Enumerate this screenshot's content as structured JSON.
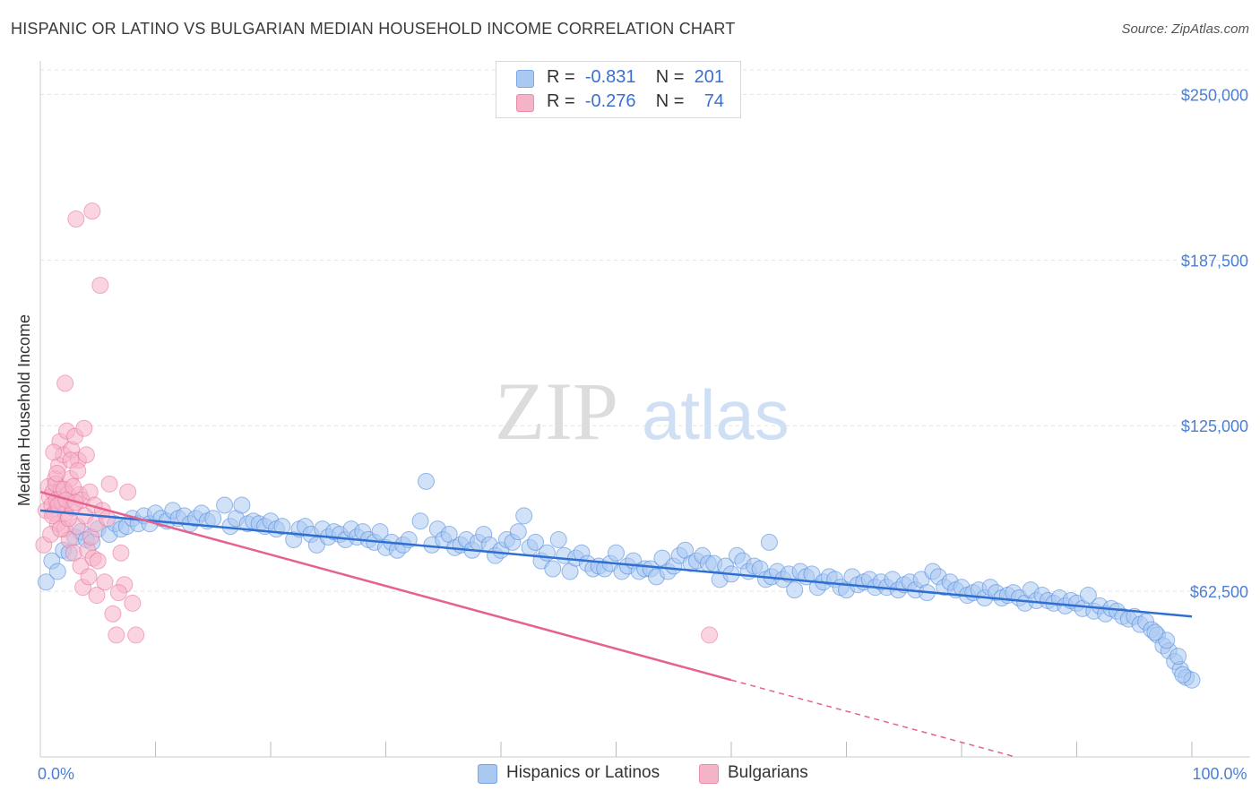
{
  "title": "HISPANIC OR LATINO VS BULGARIAN MEDIAN HOUSEHOLD INCOME CORRELATION CHART",
  "source": "Source: ZipAtlas.com",
  "watermark": {
    "zip": "ZIP",
    "atlas": "atlas"
  },
  "legend": [
    {
      "r_label": "R =",
      "r_value": "-0.831",
      "n_label": "N =",
      "n_value": "201",
      "color": "#a9c8f2"
    },
    {
      "r_label": "R =",
      "r_value": "-0.276",
      "n_label": "N =",
      "n_value": "74",
      "color": "#f5b3c8"
    }
  ],
  "chart_data": {
    "type": "scatter",
    "xlabel": "",
    "ylabel": "Median Household Income",
    "xlim": [
      0,
      100
    ],
    "ylim": [
      0,
      262000
    ],
    "y_ticks": [
      {
        "value": 62500,
        "label": "$62,500"
      },
      {
        "value": 125000,
        "label": "$125,000"
      },
      {
        "value": 187500,
        "label": "$187,500"
      },
      {
        "value": 250000,
        "label": "$250,000"
      }
    ],
    "x_ticks": [
      {
        "value": 0,
        "label": "0.0%"
      },
      {
        "value": 100,
        "label": "100.0%"
      }
    ],
    "grid": true,
    "series": [
      {
        "name": "Hispanics or Latinos",
        "color": "#4a86d9",
        "fill": "#a9c8f2",
        "trend": {
          "x0": 0,
          "y0": 93000,
          "x1": 100,
          "y1": 53000
        },
        "points": [
          [
            0.5,
            66000
          ],
          [
            1,
            74000
          ],
          [
            1.5,
            70000
          ],
          [
            2,
            78000
          ],
          [
            2.5,
            77000
          ],
          [
            3,
            83000
          ],
          [
            3.5,
            85000
          ],
          [
            4,
            82000
          ],
          [
            4.5,
            81000
          ],
          [
            5,
            86000
          ],
          [
            6,
            84000
          ],
          [
            6.5,
            88000
          ],
          [
            7,
            86000
          ],
          [
            7.5,
            87000
          ],
          [
            8,
            90000
          ],
          [
            8.5,
            88000
          ],
          [
            9,
            91000
          ],
          [
            9.5,
            88000
          ],
          [
            10,
            92000
          ],
          [
            10.5,
            90000
          ],
          [
            11,
            89000
          ],
          [
            11.5,
            93000
          ],
          [
            12,
            90000
          ],
          [
            12.5,
            91000
          ],
          [
            13,
            88000
          ],
          [
            13.5,
            90000
          ],
          [
            14,
            92000
          ],
          [
            14.5,
            89000
          ],
          [
            15,
            90000
          ],
          [
            16,
            95000
          ],
          [
            16.5,
            87000
          ],
          [
            17,
            90000
          ],
          [
            17.5,
            95000
          ],
          [
            18,
            88000
          ],
          [
            18.5,
            89000
          ],
          [
            19,
            88000
          ],
          [
            19.5,
            87000
          ],
          [
            20,
            89000
          ],
          [
            20.5,
            86000
          ],
          [
            21,
            87000
          ],
          [
            22,
            82000
          ],
          [
            22.5,
            86000
          ],
          [
            23,
            87000
          ],
          [
            23.5,
            84000
          ],
          [
            24,
            80000
          ],
          [
            24.5,
            86000
          ],
          [
            25,
            83000
          ],
          [
            25.5,
            85000
          ],
          [
            26,
            84000
          ],
          [
            26.5,
            82000
          ],
          [
            27,
            86000
          ],
          [
            27.5,
            83000
          ],
          [
            28,
            85000
          ],
          [
            28.5,
            82000
          ],
          [
            29,
            81000
          ],
          [
            29.5,
            85000
          ],
          [
            30,
            79000
          ],
          [
            30.5,
            81000
          ],
          [
            31,
            78000
          ],
          [
            31.5,
            80000
          ],
          [
            32,
            82000
          ],
          [
            33,
            89000
          ],
          [
            33.5,
            104000
          ],
          [
            34,
            80000
          ],
          [
            34.5,
            86000
          ],
          [
            35,
            82000
          ],
          [
            35.5,
            84000
          ],
          [
            36,
            79000
          ],
          [
            36.5,
            80000
          ],
          [
            37,
            82000
          ],
          [
            37.5,
            78000
          ],
          [
            38,
            81000
          ],
          [
            38.5,
            84000
          ],
          [
            39,
            80000
          ],
          [
            39.5,
            76000
          ],
          [
            40,
            78000
          ],
          [
            40.5,
            82000
          ],
          [
            41,
            81000
          ],
          [
            41.5,
            85000
          ],
          [
            42,
            91000
          ],
          [
            42.5,
            79000
          ],
          [
            43,
            81000
          ],
          [
            43.5,
            74000
          ],
          [
            44,
            77000
          ],
          [
            44.5,
            71000
          ],
          [
            45,
            82000
          ],
          [
            45.5,
            76000
          ],
          [
            46,
            70000
          ],
          [
            46.5,
            75000
          ],
          [
            47,
            77000
          ],
          [
            47.5,
            73000
          ],
          [
            48,
            71000
          ],
          [
            48.5,
            72000
          ],
          [
            49,
            71000
          ],
          [
            49.5,
            73000
          ],
          [
            50,
            77000
          ],
          [
            50.5,
            70000
          ],
          [
            51,
            72000
          ],
          [
            51.5,
            74000
          ],
          [
            52,
            70000
          ],
          [
            52.5,
            71000
          ],
          [
            53,
            71000
          ],
          [
            53.5,
            68000
          ],
          [
            54,
            75000
          ],
          [
            54.5,
            70000
          ],
          [
            55,
            72000
          ],
          [
            55.5,
            76000
          ],
          [
            56,
            78000
          ],
          [
            56.5,
            73000
          ],
          [
            57,
            74000
          ],
          [
            57.5,
            76000
          ],
          [
            58,
            73000
          ],
          [
            58.5,
            73000
          ],
          [
            59,
            67000
          ],
          [
            59.5,
            72000
          ],
          [
            60,
            69000
          ],
          [
            60.5,
            76000
          ],
          [
            61,
            74000
          ],
          [
            61.5,
            70000
          ],
          [
            62,
            72000
          ],
          [
            62.5,
            71000
          ],
          [
            63,
            67000
          ],
          [
            63.5,
            68000
          ],
          [
            64,
            70000
          ],
          [
            64.5,
            67000
          ],
          [
            65,
            69000
          ],
          [
            65.5,
            63000
          ],
          [
            66,
            70000
          ],
          [
            66.5,
            68000
          ],
          [
            67,
            69000
          ],
          [
            67.5,
            64000
          ],
          [
            68,
            66000
          ],
          [
            68.5,
            68000
          ],
          [
            69,
            67000
          ],
          [
            69.5,
            64000
          ],
          [
            70,
            63000
          ],
          [
            70.5,
            68000
          ],
          [
            71,
            65000
          ],
          [
            71.5,
            66000
          ],
          [
            72,
            67000
          ],
          [
            72.5,
            64000
          ],
          [
            73,
            66000
          ],
          [
            73.5,
            64000
          ],
          [
            74,
            67000
          ],
          [
            74.5,
            63000
          ],
          [
            75,
            65000
          ],
          [
            75.5,
            66000
          ],
          [
            76,
            63000
          ],
          [
            76.5,
            67000
          ],
          [
            77,
            62000
          ],
          [
            77.5,
            70000
          ],
          [
            78,
            68000
          ],
          [
            78.5,
            64000
          ],
          [
            79,
            66000
          ],
          [
            79.5,
            63000
          ],
          [
            80,
            64000
          ],
          [
            80.5,
            61000
          ],
          [
            81,
            62000
          ],
          [
            81.5,
            63000
          ],
          [
            82,
            60000
          ],
          [
            82.5,
            64000
          ],
          [
            83,
            62000
          ],
          [
            83.5,
            60000
          ],
          [
            84,
            61000
          ],
          [
            84.5,
            62000
          ],
          [
            85,
            60000
          ],
          [
            85.5,
            58000
          ],
          [
            86,
            63000
          ],
          [
            86.5,
            59000
          ],
          [
            87,
            61000
          ],
          [
            87.5,
            59000
          ],
          [
            88,
            58000
          ],
          [
            88.5,
            60000
          ],
          [
            89,
            57000
          ],
          [
            89.5,
            59000
          ],
          [
            90,
            58000
          ],
          [
            90.5,
            56000
          ],
          [
            91,
            61000
          ],
          [
            91.5,
            55000
          ],
          [
            92,
            57000
          ],
          [
            92.5,
            54000
          ],
          [
            93,
            56000
          ],
          [
            93.5,
            55000
          ],
          [
            94,
            53000
          ],
          [
            94.5,
            52000
          ],
          [
            95,
            53000
          ],
          [
            95.5,
            50000
          ],
          [
            96,
            51000
          ],
          [
            96.5,
            48000
          ],
          [
            97,
            46000
          ],
          [
            97.5,
            42000
          ],
          [
            98,
            40000
          ],
          [
            98.5,
            36000
          ],
          [
            99,
            33000
          ],
          [
            99.5,
            30000
          ],
          [
            100,
            29000
          ],
          [
            99.2,
            31000
          ],
          [
            98.8,
            38000
          ],
          [
            97.8,
            44000
          ],
          [
            96.8,
            47000
          ],
          [
            63.3,
            81000
          ]
        ]
      },
      {
        "name": "Bulgarians",
        "color": "#e8709a",
        "fill": "#f5b3c8",
        "trend_solid": {
          "x0": 0,
          "y0": 100000,
          "x1": 60,
          "y1": 29000
        },
        "trend_dashed": {
          "x0": 60,
          "y0": 29000,
          "x1": 100,
          "y1": -18000
        },
        "points": [
          [
            0.3,
            80000
          ],
          [
            0.5,
            93000
          ],
          [
            0.7,
            102000
          ],
          [
            0.8,
            98000
          ],
          [
            1,
            95000
          ],
          [
            1.1,
            100000
          ],
          [
            1.2,
            92000
          ],
          [
            1.3,
            105000
          ],
          [
            1.4,
            97000
          ],
          [
            1.5,
            88000
          ],
          [
            1.6,
            110000
          ],
          [
            1.7,
            119000
          ],
          [
            1.8,
            101000
          ],
          [
            1.9,
            96000
          ],
          [
            2,
            114000
          ],
          [
            2.1,
            86000
          ],
          [
            2.2,
            92000
          ],
          [
            2.3,
            123000
          ],
          [
            2.4,
            99000
          ],
          [
            2.5,
            82000
          ],
          [
            2.6,
            105000
          ],
          [
            2.7,
            116000
          ],
          [
            2.8,
            94000
          ],
          [
            2.9,
            77000
          ],
          [
            3,
            121000
          ],
          [
            3.1,
            203000
          ],
          [
            3.2,
            87000
          ],
          [
            3.3,
            112000
          ],
          [
            3.4,
            99000
          ],
          [
            3.5,
            72000
          ],
          [
            3.6,
            97000
          ],
          [
            3.7,
            64000
          ],
          [
            3.8,
            124000
          ],
          [
            3.9,
            91000
          ],
          [
            4,
            114000
          ],
          [
            4.1,
            78000
          ],
          [
            4.2,
            68000
          ],
          [
            4.3,
            100000
          ],
          [
            4.4,
            83000
          ],
          [
            4.5,
            206000
          ],
          [
            4.6,
            75000
          ],
          [
            4.7,
            95000
          ],
          [
            4.8,
            88000
          ],
          [
            4.9,
            61000
          ],
          [
            5,
            74000
          ],
          [
            5.2,
            178000
          ],
          [
            5.4,
            93000
          ],
          [
            5.6,
            66000
          ],
          [
            5.8,
            90000
          ],
          [
            6,
            103000
          ],
          [
            6.3,
            54000
          ],
          [
            6.6,
            46000
          ],
          [
            7,
            77000
          ],
          [
            7.3,
            65000
          ],
          [
            7.6,
            100000
          ],
          [
            8,
            58000
          ],
          [
            8.3,
            46000
          ],
          [
            0.9,
            84000
          ],
          [
            1.05,
            91000
          ],
          [
            1.15,
            115000
          ],
          [
            1.35,
            103000
          ],
          [
            1.45,
            107000
          ],
          [
            1.55,
            95000
          ],
          [
            1.75,
            86000
          ],
          [
            2.05,
            101000
          ],
          [
            2.15,
            141000
          ],
          [
            2.25,
            97000
          ],
          [
            2.45,
            90000
          ],
          [
            2.65,
            112000
          ],
          [
            2.85,
            102000
          ],
          [
            3.05,
            96000
          ],
          [
            3.25,
            108000
          ],
          [
            6.8,
            62000
          ],
          [
            58.1,
            46000
          ]
        ]
      }
    ]
  }
}
